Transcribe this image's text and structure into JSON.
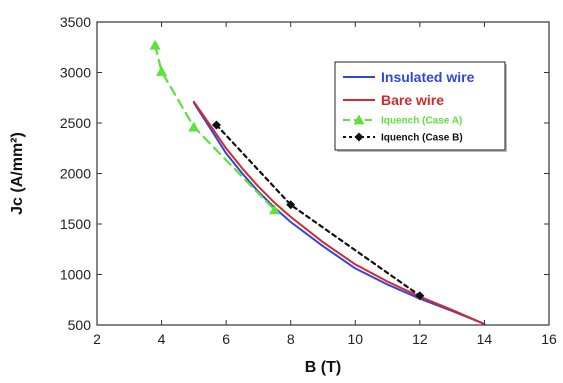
{
  "chart_data": {
    "type": "line",
    "title": "",
    "xlabel": "B (T)",
    "ylabel": "Jc (A/mm²)",
    "xlim": [
      2,
      16
    ],
    "ylim": [
      500,
      3500
    ],
    "x_ticks": [
      "2",
      "4",
      "6",
      "8",
      "10",
      "12",
      "14",
      "16"
    ],
    "y_ticks": [
      "500",
      "1000",
      "1500",
      "2000",
      "2500",
      "3000",
      "3500"
    ],
    "grid": false,
    "legend_position": "top-right",
    "series": [
      {
        "name": "Insulated wire",
        "color": "#2f46e0",
        "style": "solid",
        "marker": "none",
        "x": [
          5.0,
          5.5,
          6.0,
          6.5,
          7.0,
          7.5,
          8.0,
          9.0,
          10.0,
          11.0,
          12.0,
          13.0,
          14.0
        ],
        "y": [
          2700,
          2450,
          2200,
          2000,
          1820,
          1660,
          1520,
          1280,
          1060,
          900,
          760,
          640,
          510
        ]
      },
      {
        "name": "Bare wire",
        "color": "#d42a2a",
        "style": "solid",
        "marker": "none",
        "x": [
          5.0,
          5.5,
          6.0,
          6.5,
          7.0,
          7.5,
          8.0,
          9.0,
          10.0,
          11.0,
          12.0,
          13.0,
          14.0
        ],
        "y": [
          2710,
          2480,
          2250,
          2050,
          1870,
          1710,
          1570,
          1320,
          1100,
          930,
          780,
          650,
          510
        ]
      },
      {
        "name": "Iquench (Case A)",
        "color": "#5ee13c",
        "style": "dashed",
        "marker": "triangle",
        "x": [
          3.8,
          4.0,
          5.0,
          7.5
        ],
        "y": [
          3270,
          3010,
          2460,
          1640
        ]
      },
      {
        "name": "Iquench (Case B)",
        "color": "#111111",
        "style": "dotted",
        "marker": "diamond",
        "x": [
          5.7,
          8.0,
          12.0
        ],
        "y": [
          2480,
          1690,
          790
        ]
      }
    ]
  }
}
